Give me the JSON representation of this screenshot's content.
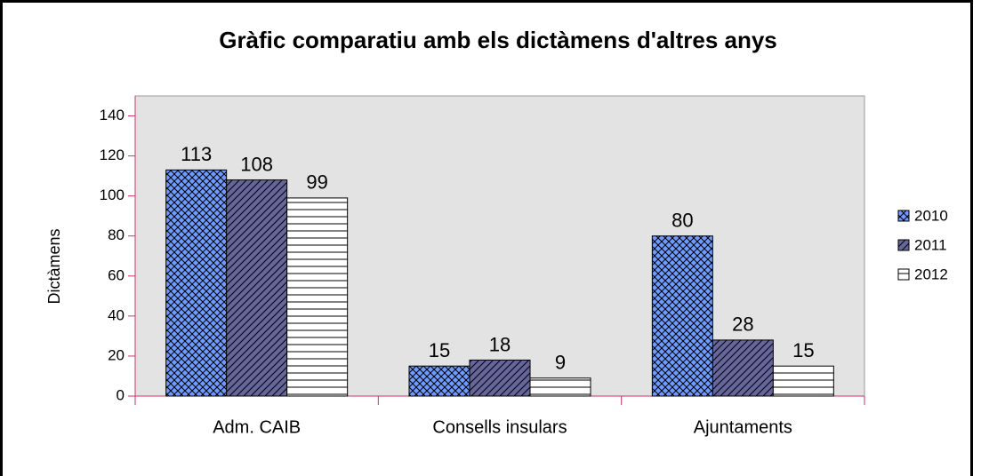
{
  "chart_data": {
    "type": "bar",
    "title": "Gràfic comparatiu amb els dictàmens d'altres anys",
    "y_label": "Dictàmens",
    "categories": [
      "Adm. CAIB",
      "Consells insulars",
      "Ajuntaments"
    ],
    "series": [
      {
        "name": "2010",
        "color": "#6e9bff",
        "pattern": "crosshatch",
        "values": [
          113,
          15,
          80
        ]
      },
      {
        "name": "2011",
        "color": "#666699",
        "pattern": "diagonal",
        "values": [
          108,
          18,
          28
        ]
      },
      {
        "name": "2012",
        "color": "#ffffff",
        "pattern": "horizontal",
        "values": [
          99,
          9,
          15
        ]
      }
    ],
    "ylim": [
      0,
      150
    ],
    "yticks": [
      0,
      20,
      40,
      60,
      80,
      100,
      120,
      140
    ],
    "legend": "right"
  }
}
